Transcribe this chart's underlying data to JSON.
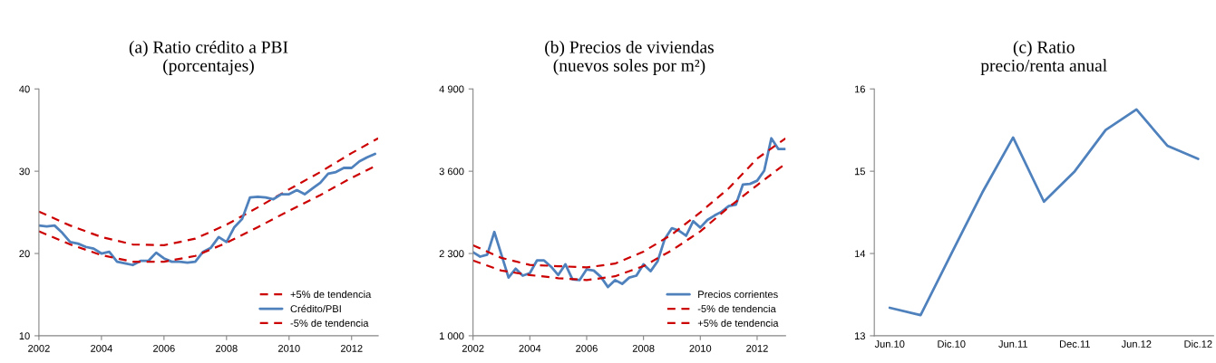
{
  "chart_data": [
    {
      "type": "line",
      "title": "(a) Ratio crédito a PBI\n(porcentajes)",
      "xlim": [
        2002,
        2012.85
      ],
      "xticks": [
        2002,
        2004,
        2006,
        2008,
        2010,
        2012
      ],
      "ylim": [
        10,
        40
      ],
      "yticks": [
        10,
        20,
        30,
        40
      ],
      "grid": false,
      "legend": "lower right",
      "series": [
        {
          "name": "+5% de tendencia",
          "color": "#cc0000",
          "line_style": "dashed",
          "x": [
            2002,
            2003,
            2004,
            2005,
            2006,
            2007,
            2008,
            2009,
            2010,
            2011,
            2012,
            2012.85
          ],
          "values": [
            25.1,
            23.4,
            22.0,
            21.1,
            21.0,
            21.8,
            23.5,
            25.6,
            27.8,
            29.9,
            32.2,
            34.0
          ]
        },
        {
          "name": "Crédito/PBI",
          "color": "#4f81bd",
          "line_style": "solid",
          "x": [
            2002,
            2002.25,
            2002.5,
            2002.75,
            2003,
            2003.25,
            2003.5,
            2003.75,
            2004,
            2004.25,
            2004.5,
            2004.75,
            2005,
            2005.25,
            2005.5,
            2005.75,
            2006,
            2006.25,
            2006.5,
            2006.75,
            2007,
            2007.25,
            2007.5,
            2007.75,
            2008,
            2008.25,
            2008.5,
            2008.75,
            2009,
            2009.25,
            2009.5,
            2009.75,
            2010,
            2010.25,
            2010.5,
            2010.75,
            2011,
            2011.25,
            2011.5,
            2011.75,
            2012,
            2012.25,
            2012.5,
            2012.75
          ],
          "values": [
            23.4,
            23.3,
            23.4,
            22.5,
            21.4,
            21.2,
            20.8,
            20.6,
            20.0,
            20.2,
            19.0,
            18.8,
            18.6,
            19.1,
            19.1,
            20.1,
            19.4,
            19.0,
            19.0,
            18.9,
            19.0,
            20.2,
            20.7,
            22.0,
            21.4,
            23.2,
            24.2,
            26.8,
            26.9,
            26.8,
            26.6,
            27.2,
            27.2,
            27.7,
            27.2,
            27.9,
            28.6,
            29.7,
            29.9,
            30.4,
            30.4,
            31.2,
            31.7,
            32.1
          ]
        },
        {
          "name": "-5% de tendencia",
          "color": "#cc0000",
          "line_style": "dashed",
          "x": [
            2002,
            2003,
            2004,
            2005,
            2006,
            2007,
            2008,
            2009,
            2010,
            2011,
            2012,
            2012.85
          ],
          "values": [
            22.7,
            21.1,
            19.8,
            19.0,
            19.0,
            19.7,
            21.3,
            23.2,
            25.2,
            27.1,
            29.2,
            30.8
          ]
        }
      ]
    },
    {
      "type": "line",
      "title": "(b) Precios de viviendas\n(nuevos soles por m²)",
      "xlim": [
        2002,
        2013
      ],
      "xticks": [
        2002,
        2004,
        2006,
        2008,
        2010,
        2012
      ],
      "ylim": [
        1000,
        4900
      ],
      "yticks": [
        {
          "value": 1000,
          "label": "1 000"
        },
        {
          "value": 2300,
          "label": "2 300"
        },
        {
          "value": 3600,
          "label": "3 600"
        },
        {
          "value": 4900,
          "label": "4 900"
        }
      ],
      "grid": false,
      "legend": "lower right",
      "series": [
        {
          "name": "Precios corrientes",
          "color": "#4f81bd",
          "line_style": "solid",
          "x": [
            2002,
            2002.25,
            2002.5,
            2002.75,
            2003,
            2003.25,
            2003.5,
            2003.75,
            2004,
            2004.25,
            2004.5,
            2004.75,
            2005,
            2005.25,
            2005.5,
            2005.75,
            2006,
            2006.25,
            2006.5,
            2006.75,
            2007,
            2007.25,
            2007.5,
            2007.75,
            2008,
            2008.25,
            2008.5,
            2008.75,
            2009,
            2009.25,
            2009.5,
            2009.75,
            2010,
            2010.25,
            2010.5,
            2010.75,
            2011,
            2011.25,
            2011.5,
            2011.75,
            2012,
            2012.25,
            2012.5,
            2012.75,
            2013
          ],
          "values": [
            2320,
            2250,
            2280,
            2640,
            2280,
            1920,
            2060,
            1950,
            1990,
            2190,
            2190,
            2090,
            1960,
            2130,
            1890,
            1880,
            2050,
            2030,
            1930,
            1770,
            1880,
            1820,
            1920,
            1950,
            2130,
            2020,
            2180,
            2530,
            2700,
            2660,
            2580,
            2810,
            2710,
            2830,
            2900,
            2960,
            3050,
            3070,
            3390,
            3400,
            3450,
            3610,
            4120,
            3950,
            3950
          ]
        },
        {
          "name": "-5% de tendencia",
          "color": "#cc0000",
          "line_style": "dashed",
          "x": [
            2002,
            2003,
            2004,
            2005,
            2006,
            2007,
            2008,
            2009,
            2010,
            2011,
            2012,
            2013
          ],
          "values": [
            2190,
            2030,
            1960,
            1910,
            1880,
            1940,
            2100,
            2350,
            2650,
            3030,
            3380,
            3720
          ]
        },
        {
          "name": "+5% de tendencia",
          "color": "#cc0000",
          "line_style": "dashed",
          "x": [
            2002,
            2003,
            2004,
            2005,
            2006,
            2007,
            2008,
            2009,
            2010,
            2011,
            2012,
            2013
          ],
          "values": [
            2430,
            2230,
            2120,
            2100,
            2080,
            2140,
            2330,
            2600,
            2950,
            3330,
            3800,
            4120
          ]
        }
      ]
    },
    {
      "type": "line",
      "title": "(c) Ratio\nprecio/renta anual",
      "categories": [
        "Jun.10",
        null,
        "Dic.10",
        null,
        "Jun.11",
        null,
        "Dec.11",
        null,
        "Jun.12",
        null,
        "Dic.12"
      ],
      "ylim": [
        13,
        16
      ],
      "yticks": [
        13,
        14,
        15,
        16
      ],
      "grid": false,
      "series": [
        {
          "color": "#4f81bd",
          "line_style": "solid",
          "values": [
            13.34,
            13.25,
            14.0,
            14.74,
            15.41,
            14.63,
            15.0,
            15.5,
            15.75,
            15.31,
            15.15
          ]
        }
      ]
    }
  ]
}
